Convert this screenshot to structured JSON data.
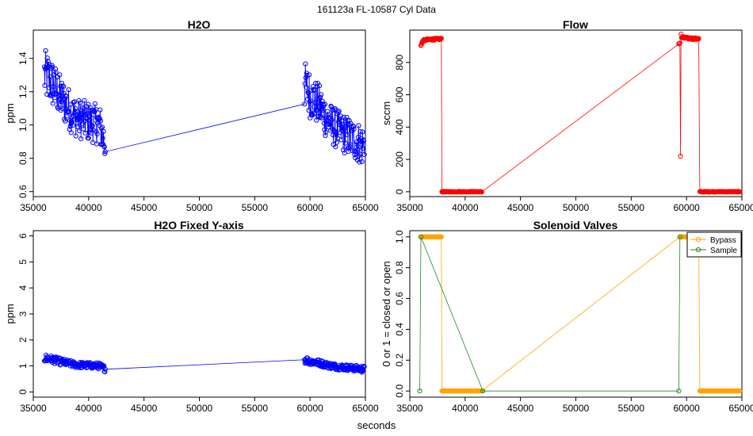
{
  "figure": {
    "suptitle": "161123a   FL-10587   Cyl Data",
    "xlabel": "seconds"
  },
  "chart_data": [
    {
      "id": "h2o",
      "type": "line",
      "title": "H2O",
      "ylabel": "ppm",
      "xlim": [
        35000,
        65000
      ],
      "ylim": [
        0.57,
        1.57
      ],
      "xticks": [
        35000,
        40000,
        45000,
        50000,
        55000,
        60000,
        65000
      ],
      "yticks": [
        0.6,
        0.8,
        1.0,
        1.2,
        1.4
      ],
      "ytick_labels": [
        "0.6",
        "0.8",
        "1.0",
        "1.2",
        "1.4"
      ],
      "series": [
        {
          "name": "H2O",
          "color": "#0000ff",
          "marker": "open-circle",
          "x": [
            36000,
            36500,
            37000,
            37500,
            38000,
            38500,
            39000,
            39500,
            40000,
            40500,
            41000,
            41500,
            59500,
            60000,
            60500,
            61000,
            61500,
            62000,
            62500,
            63000,
            63500,
            64000,
            64500,
            64900
          ],
          "y": [
            1.3,
            1.27,
            1.22,
            1.16,
            1.12,
            1.07,
            1.04,
            1.03,
            1.02,
            1.01,
            1.0,
            0.88,
            1.24,
            1.18,
            1.14,
            1.1,
            1.04,
            1.0,
            0.97,
            0.95,
            0.93,
            0.91,
            0.89,
            0.87
          ],
          "spread": [
            0.16,
            0.15,
            0.14,
            0.13,
            0.13,
            0.12,
            0.12,
            0.12,
            0.12,
            0.12,
            0.12,
            0.12,
            0.15,
            0.14,
            0.13,
            0.13,
            0.12,
            0.12,
            0.12,
            0.12,
            0.12,
            0.12,
            0.13,
            0.13
          ]
        }
      ]
    },
    {
      "id": "flow",
      "type": "line",
      "title": "Flow",
      "ylabel": "sccm",
      "xlim": [
        35000,
        65000
      ],
      "ylim": [
        -30,
        1000
      ],
      "xticks": [
        35000,
        40000,
        45000,
        50000,
        55000,
        60000,
        65000
      ],
      "yticks": [
        0,
        200,
        400,
        600,
        800
      ],
      "ytick_labels": [
        "0",
        "200",
        "400",
        "600",
        "800"
      ],
      "series": [
        {
          "name": "Flow",
          "color": "#ff0000",
          "marker": "open-circle",
          "x": [
            36000,
            36200,
            36500,
            37000,
            37500,
            37850,
            37900,
            38000,
            39000,
            40000,
            41000,
            41500,
            59300,
            59400,
            59450,
            59500,
            59550,
            60000,
            60500,
            61000,
            61100,
            61200,
            62000,
            63000,
            64000,
            64800
          ],
          "y": [
            905,
            935,
            940,
            943,
            944,
            945,
            0,
            0,
            0,
            0,
            0,
            0,
            915,
            920,
            220,
            975,
            955,
            950,
            948,
            946,
            945,
            0,
            0,
            0,
            0,
            0
          ],
          "spread": [
            0,
            6,
            6,
            6,
            6,
            6,
            2,
            2,
            2,
            2,
            2,
            2,
            0,
            0,
            0,
            8,
            7,
            6,
            6,
            6,
            6,
            2,
            2,
            2,
            2,
            2
          ]
        }
      ]
    },
    {
      "id": "h2o-fixed",
      "type": "line",
      "title": "H2O Fixed Y-axis",
      "ylabel": "ppm",
      "xlim": [
        35000,
        65000
      ],
      "ylim": [
        -0.2,
        6.2
      ],
      "xticks": [
        35000,
        40000,
        45000,
        50000,
        55000,
        60000,
        65000
      ],
      "yticks": [
        0,
        1,
        2,
        3,
        4,
        5,
        6
      ],
      "ytick_labels": [
        "0",
        "1",
        "2",
        "3",
        "4",
        "5",
        "6"
      ],
      "series": [
        {
          "name": "H2O",
          "color": "#0000ff",
          "marker": "open-circle",
          "x": [
            36000,
            36500,
            37000,
            37500,
            38000,
            38500,
            39000,
            39500,
            40000,
            40500,
            41000,
            41500,
            59500,
            60000,
            60500,
            61000,
            61500,
            62000,
            62500,
            63000,
            63500,
            64000,
            64500,
            64900
          ],
          "y": [
            1.3,
            1.27,
            1.22,
            1.16,
            1.12,
            1.07,
            1.04,
            1.03,
            1.02,
            1.01,
            1.0,
            0.88,
            1.24,
            1.18,
            1.14,
            1.1,
            1.04,
            1.0,
            0.97,
            0.95,
            0.93,
            0.91,
            0.89,
            0.87
          ],
          "spread": [
            0.16,
            0.15,
            0.14,
            0.13,
            0.13,
            0.12,
            0.12,
            0.12,
            0.12,
            0.12,
            0.12,
            0.12,
            0.15,
            0.14,
            0.13,
            0.13,
            0.12,
            0.12,
            0.12,
            0.12,
            0.12,
            0.12,
            0.13,
            0.13
          ]
        }
      ]
    },
    {
      "id": "valves",
      "type": "line",
      "title": "Solenoid Valves",
      "ylabel": "0 or 1 = closed or open",
      "xlim": [
        35000,
        65000
      ],
      "ylim": [
        -0.04,
        1.04
      ],
      "xticks": [
        35000,
        40000,
        45000,
        50000,
        55000,
        60000,
        65000
      ],
      "yticks": [
        0,
        0.2,
        0.4,
        0.6,
        0.8,
        1
      ],
      "ytick_labels": [
        "0.0",
        "0.2",
        "0.4",
        "0.6",
        "0.8",
        "1.0"
      ],
      "legend": {
        "position": "top-right",
        "entries": [
          "Bypass",
          "Sample"
        ]
      },
      "series": [
        {
          "name": "Bypass",
          "color": "#ffa500",
          "marker": "open-circle",
          "x": [
            36000,
            36500,
            37000,
            37500,
            37850,
            37900,
            38500,
            39000,
            40000,
            41000,
            41500,
            59400,
            59500,
            60000,
            60500,
            61000,
            61100,
            61200,
            62000,
            63000,
            64000,
            64800
          ],
          "y": [
            1,
            1,
            1,
            1,
            1,
            0,
            0,
            0,
            0,
            0,
            0,
            1,
            1,
            1,
            1,
            1,
            1,
            0,
            0,
            0,
            0,
            0
          ],
          "spread": [
            0,
            0,
            0,
            0,
            0,
            0,
            0,
            0,
            0,
            0,
            0,
            0,
            0,
            0,
            0,
            0,
            0,
            0,
            0,
            0,
            0,
            0
          ]
        },
        {
          "name": "Sample",
          "color": "#228b22",
          "marker": "open-circle",
          "x": [
            35900,
            36000,
            41600,
            59300,
            59400
          ],
          "y": [
            0,
            1,
            0,
            0,
            1
          ],
          "spread": [
            0,
            0,
            0,
            0,
            0
          ]
        }
      ]
    }
  ]
}
